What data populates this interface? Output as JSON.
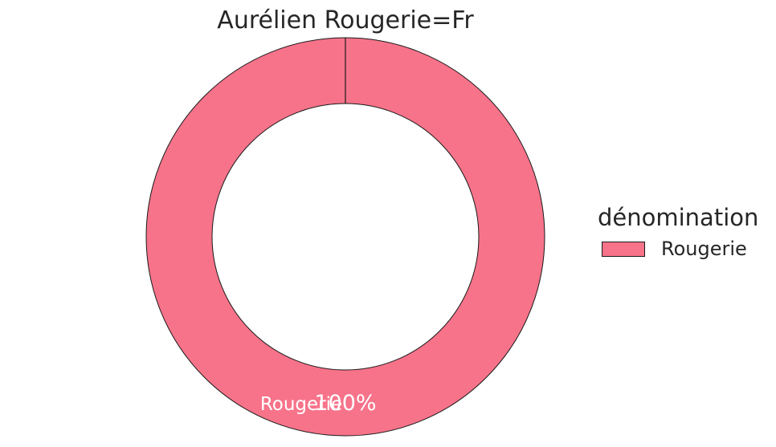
{
  "chart_data": {
    "type": "pie",
    "style": "donut",
    "title": "Aurélien Rougerie=Fr",
    "legend_title": "dénomination",
    "legend_position": "right",
    "slices": [
      {
        "label": "Rougerie",
        "value": 100,
        "percent_label": "100%",
        "color": "#f7738a"
      }
    ]
  }
}
